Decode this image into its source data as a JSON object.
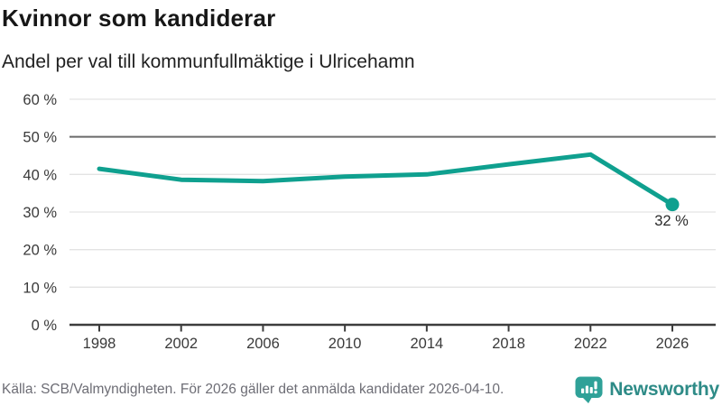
{
  "header": {
    "title": "Kvinnor som kandiderar",
    "subtitle": "Andel per val till kommunfullmäktige i Ulricehamn"
  },
  "chart_data": {
    "type": "line",
    "title": "Kvinnor som kandiderar",
    "subtitle": "Andel per val till kommunfullmäktige i Ulricehamn",
    "x": [
      1998,
      2002,
      2006,
      2010,
      2014,
      2018,
      2022,
      2026
    ],
    "values": [
      41.5,
      38.6,
      38.2,
      39.4,
      40.0,
      42.7,
      45.3,
      32.0
    ],
    "xticks": [
      "1998",
      "2002",
      "2006",
      "2010",
      "2014",
      "2018",
      "2022",
      "2026"
    ],
    "yticks": [
      "0 %",
      "10 %",
      "20 %",
      "30 %",
      "40 %",
      "50 %",
      "60 %"
    ],
    "xlim": [
      1998,
      2026
    ],
    "ylim": [
      0,
      60
    ],
    "ytick_step": 10,
    "grid": true,
    "reference_line": 50,
    "last_point_label": "32 %",
    "legend": "none",
    "colors": {
      "line": "#0fa08f",
      "grid": "#e3e3e3",
      "reference": "#6a6a6a",
      "axis": "#3c3c3c",
      "tick_label": "#3a3a3a",
      "annotation": "#2b2b2b"
    }
  },
  "footer": {
    "source": "Källa: SCB/Valmyndigheten. För 2026 gäller det anmälda kandidater 2026-04-10.",
    "logo_text": "Newsworthy",
    "logo_colors": {
      "icon": "#2fa198",
      "text": "#2e8b87"
    }
  }
}
